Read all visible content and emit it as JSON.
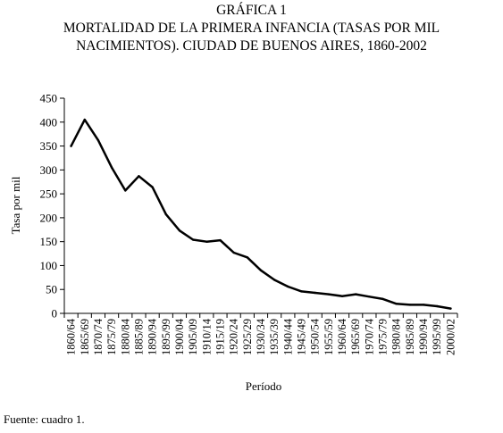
{
  "heading": {
    "label": "GRÁFICA 1",
    "line1": "MORTALIDAD DE LA PRIMERA INFANCIA (TASAS POR MIL",
    "line2": "NACIMIENTOS). CIUDAD DE BUENOS AIRES, 1860-2002"
  },
  "source": "Fuente: cuadro 1.",
  "chart_data": {
    "type": "line",
    "title": "MORTALIDAD DE LA PRIMERA INFANCIA (TASAS POR MIL NACIMIENTOS). CIUDAD DE BUENOS AIRES, 1860-2002",
    "xlabel": "Período",
    "ylabel": "Tasa por mil",
    "ylim": [
      0,
      450
    ],
    "yticks": [
      0,
      50,
      100,
      150,
      200,
      250,
      300,
      350,
      400,
      450
    ],
    "grid": false,
    "legend": "none",
    "line_color": "#000000",
    "categories": [
      "1860/64",
      "1865/69",
      "1870/74",
      "1875/79",
      "1880/84",
      "1885/89",
      "1890/94",
      "1895/99",
      "1900/04",
      "1905/09",
      "1910/14",
      "1915/19",
      "1920/24",
      "1925/29",
      "1930/34",
      "1935/39",
      "1940/44",
      "1945/49",
      "1950/54",
      "1955/59",
      "1960/64",
      "1965/69",
      "1970/74",
      "1975/79",
      "1980/84",
      "1985/89",
      "1990/94",
      "1995/99",
      "2000/02"
    ],
    "values": [
      350,
      405,
      362,
      305,
      257,
      287,
      264,
      207,
      173,
      154,
      150,
      153,
      127,
      117,
      90,
      70,
      56,
      46,
      43,
      40,
      36,
      40,
      35,
      30,
      20,
      18,
      18,
      15,
      10
    ]
  }
}
